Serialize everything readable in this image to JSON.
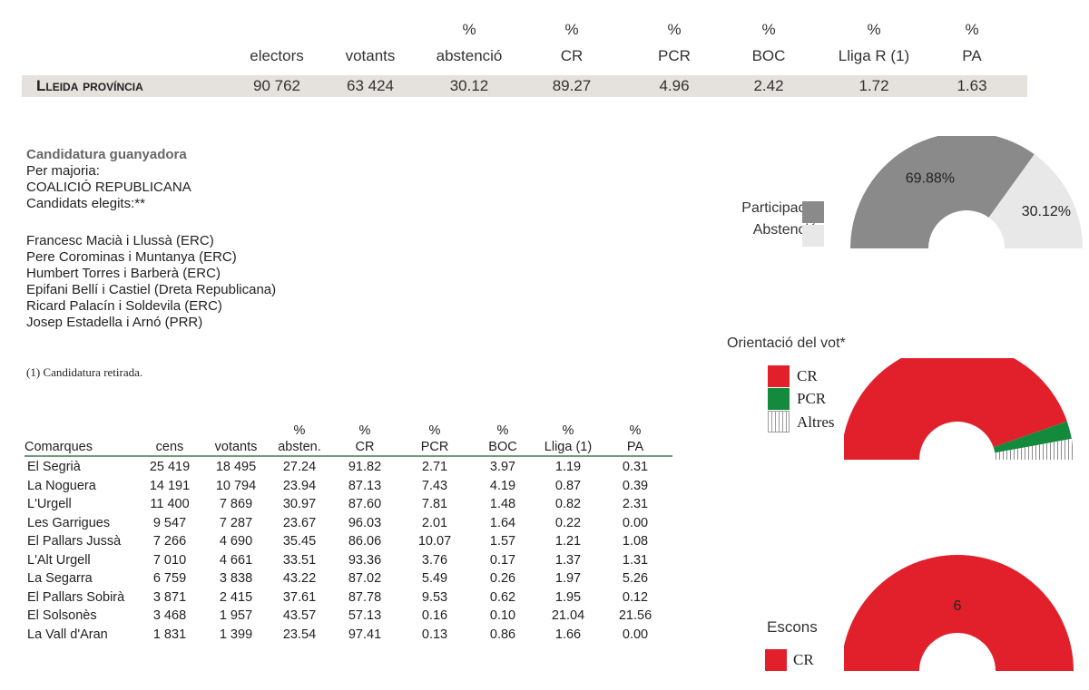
{
  "summary": {
    "headers": [
      {
        "pct": "",
        "label": "electors"
      },
      {
        "pct": "",
        "label": "votants"
      },
      {
        "pct": "%",
        "label": "abstenció"
      },
      {
        "pct": "%",
        "label": "CR"
      },
      {
        "pct": "%",
        "label": "PCR"
      },
      {
        "pct": "%",
        "label": "BOC"
      },
      {
        "pct": "%",
        "label": "Lliga R (1)"
      },
      {
        "pct": "%",
        "label": "PA"
      }
    ],
    "row_label": "Lleida província",
    "values": [
      "90 762",
      "63 424",
      "30.12",
      "89.27",
      "4.96",
      "2.42",
      "1.72",
      "1.63"
    ]
  },
  "winner": {
    "heading": "Candidatura guanyadora",
    "type": "Per majoria:",
    "party": "COALICIÓ REPUBLICANA",
    "elected_label": "Candidats elegits:**"
  },
  "candidates": [
    "Francesc Macià i Llussà (ERC)",
    "Pere Corominas i Muntanya (ERC)",
    "Humbert Torres i Barberà (ERC)",
    "Epifani Bellí i Castiel (Dreta Republicana)",
    "Ricard Palacín i Soldevila (ERC)",
    "Josep Estadella i Arnó (PRR)"
  ],
  "footnote": "(1) Candidatura retirada.",
  "comarques": {
    "headers": [
      {
        "pct": "",
        "label": "Comarques"
      },
      {
        "pct": "",
        "label": "cens"
      },
      {
        "pct": "",
        "label": "votants"
      },
      {
        "pct": "%",
        "label": "absten."
      },
      {
        "pct": "%",
        "label": "CR"
      },
      {
        "pct": "%",
        "label": "PCR"
      },
      {
        "pct": "%",
        "label": "BOC"
      },
      {
        "pct": "%",
        "label": "Lliga (1)"
      },
      {
        "pct": "%",
        "label": "PA"
      }
    ],
    "rows": [
      [
        "El Segrià",
        "25 419",
        "18 495",
        "27.24",
        "91.82",
        "2.71",
        "3.97",
        "1.19",
        "0.31"
      ],
      [
        "La Noguera",
        "14 191",
        "10 794",
        "23.94",
        "87.13",
        "7.43",
        "4.19",
        "0.87",
        "0.39"
      ],
      [
        "L'Urgell",
        "11 400",
        "7 869",
        "30.97",
        "87.60",
        "7.81",
        "1.48",
        "0.82",
        "2.31"
      ],
      [
        "Les Garrigues",
        "9 547",
        "7 287",
        "23.67",
        "96.03",
        "2.01",
        "1.64",
        "0.22",
        "0.00"
      ],
      [
        "El Pallars Jussà",
        "7 266",
        "4 690",
        "35.45",
        "86.06",
        "10.07",
        "1.57",
        "1.21",
        "1.08"
      ],
      [
        "L'Alt Urgell",
        "7 010",
        "4 661",
        "33.51",
        "93.36",
        "3.76",
        "0.17",
        "1.37",
        "1.31"
      ],
      [
        "La Segarra",
        "6 759",
        "3 838",
        "43.22",
        "87.02",
        "5.49",
        "0.26",
        "1.97",
        "5.26"
      ],
      [
        "El Pallars Sobirà",
        "3 871",
        "2 415",
        "37.61",
        "87.78",
        "9.53",
        "0.62",
        "1.95",
        "0.12"
      ],
      [
        "El Solsonès",
        "3 468",
        "1 957",
        "43.57",
        "57.13",
        "0.16",
        "0.10",
        "21.04",
        "21.56"
      ],
      [
        "La Vall d'Aran",
        "1 831",
        "1 399",
        "23.54",
        "97.41",
        "0.13",
        "0.86",
        "1.66",
        "0.00"
      ]
    ]
  },
  "colors": {
    "participacio": "#8a8a8a",
    "abstencio": "#e8e8e8",
    "cr": "#e2202c",
    "pcr": "#138a3c",
    "altres": "#ffffff",
    "rule": "#6f9a7f",
    "summary_bar": "#e5e1dd"
  },
  "chart_data": [
    {
      "type": "pie",
      "subtype": "half-donut",
      "title": "",
      "categories": [
        "Participació",
        "Abstenció"
      ],
      "values": [
        69.88,
        30.12
      ],
      "value_labels": [
        "69.88%",
        "30.12%"
      ]
    },
    {
      "type": "pie",
      "subtype": "half-donut",
      "title": "Orientació del vot*",
      "categories": [
        "CR",
        "PCR",
        "Altres"
      ],
      "values": [
        89.27,
        4.96,
        5.77
      ]
    },
    {
      "type": "pie",
      "subtype": "half-donut",
      "title": "Escons",
      "categories": [
        "CR"
      ],
      "values": [
        6
      ],
      "value_labels": [
        "6"
      ]
    }
  ]
}
